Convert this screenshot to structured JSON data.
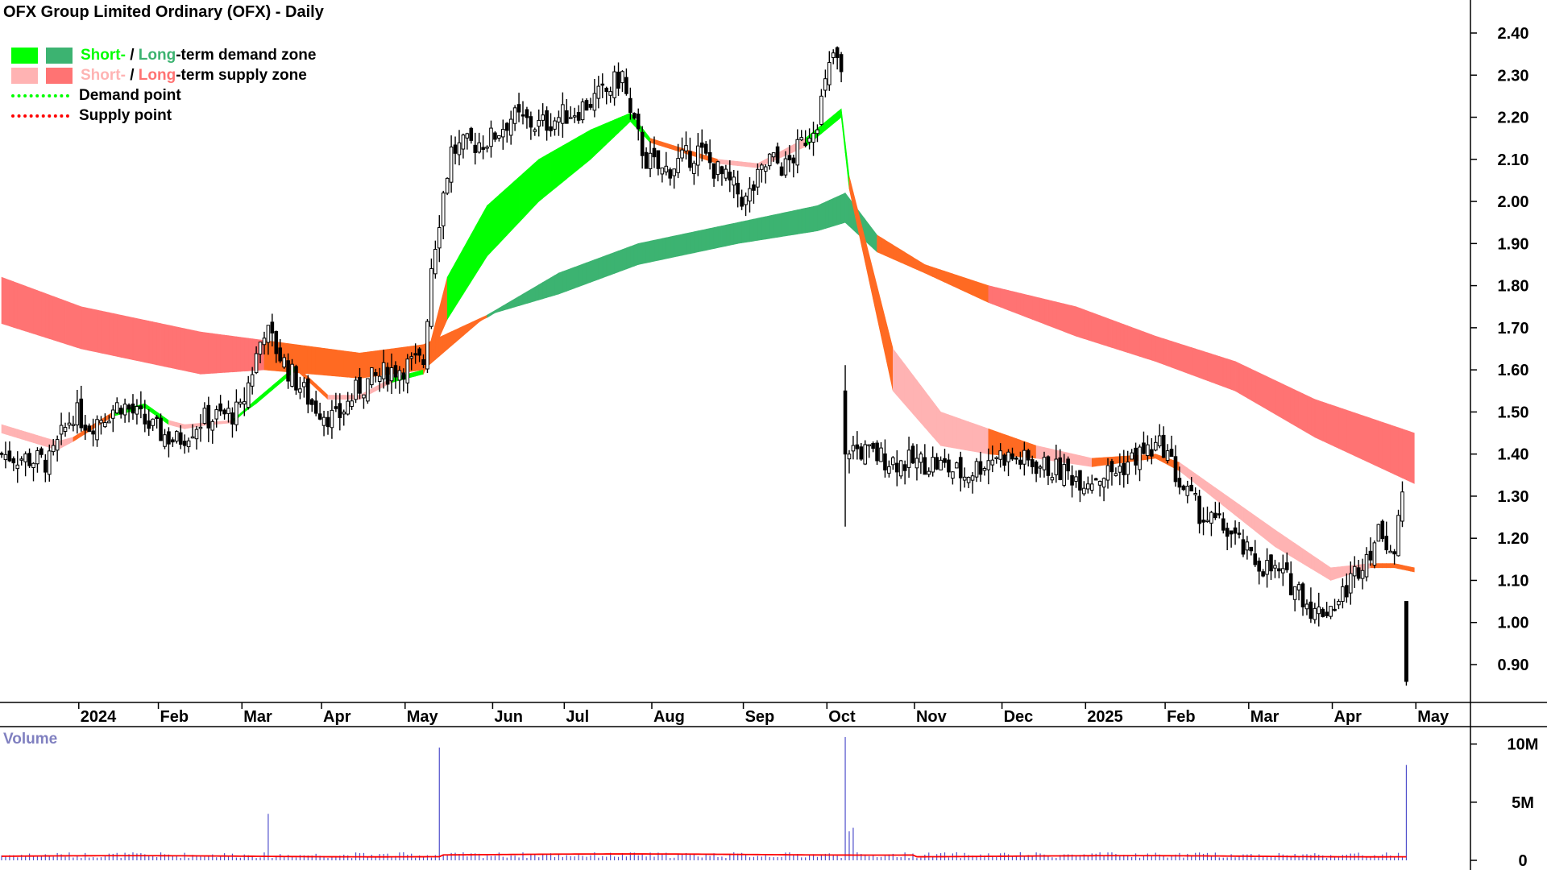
{
  "title": "OFX Group Limited Ordinary (OFX) - Daily",
  "legend": {
    "demand_short": "Short-",
    "demand_sep": " / ",
    "demand_long": "Long",
    "demand_rest": "-term demand zone",
    "supply_short": "Short-",
    "supply_sep": " / ",
    "supply_long": "Long",
    "supply_rest": "-term supply zone",
    "demand_point": "Demand point",
    "supply_point": "Supply point"
  },
  "colors": {
    "demand_short": "#00ff00",
    "demand_long": "#3cb371",
    "supply_short": "#ffb3b3",
    "supply_long": "#ff7373",
    "transition": "#ff6a22",
    "demand_point": "#00ff00",
    "supply_point": "#ff0000",
    "volume_bar": "#5050cc",
    "volume_avg": "#ff0000",
    "volume_label": "#8080c0"
  },
  "volume_label": "Volume",
  "chart_data": {
    "type": "candlestick",
    "x_labels": [
      "2024",
      "Feb",
      "Mar",
      "Apr",
      "May",
      "Jun",
      "Jul",
      "Aug",
      "Sep",
      "Oct",
      "Nov",
      "Dec",
      "2025",
      "Feb",
      "Mar",
      "Apr",
      "May"
    ],
    "y_ticks": [
      "2.40",
      "2.30",
      "2.20",
      "2.10",
      "2.00",
      "1.90",
      "1.80",
      "1.70",
      "1.60",
      "1.50",
      "1.40",
      "1.30",
      "1.20",
      "1.10",
      "1.00",
      "0.90"
    ],
    "ylim": [
      0.82,
      2.48
    ],
    "volume_ticks": [
      "10M",
      "5M",
      "0"
    ],
    "volume_max": 11500000,
    "price_path": [
      [
        0,
        1.4
      ],
      [
        12,
        1.38
      ],
      [
        18,
        1.5
      ],
      [
        22,
        1.47
      ],
      [
        30,
        1.52
      ],
      [
        38,
        1.46
      ],
      [
        44,
        1.43
      ],
      [
        50,
        1.48
      ],
      [
        60,
        1.5
      ],
      [
        66,
        1.7
      ],
      [
        72,
        1.6
      ],
      [
        78,
        1.52
      ],
      [
        84,
        1.48
      ],
      [
        90,
        1.56
      ],
      [
        98,
        1.6
      ],
      [
        106,
        1.62
      ],
      [
        108,
        1.85
      ],
      [
        111,
        2.02
      ],
      [
        113,
        2.12
      ],
      [
        123,
        2.15
      ],
      [
        128,
        2.2
      ],
      [
        135,
        2.18
      ],
      [
        145,
        2.22
      ],
      [
        152,
        2.26
      ],
      [
        156,
        2.3
      ],
      [
        158,
        2.2
      ],
      [
        162,
        2.1
      ],
      [
        166,
        2.07
      ],
      [
        175,
        2.12
      ],
      [
        182,
        2.05
      ],
      [
        187,
        2.0
      ],
      [
        193,
        2.1
      ],
      [
        197,
        2.08
      ],
      [
        200,
        2.12
      ],
      [
        205,
        2.2
      ],
      [
        209,
        2.35
      ],
      [
        211,
        2.3
      ],
      [
        212,
        1.42
      ],
      [
        218,
        1.4
      ],
      [
        226,
        1.38
      ],
      [
        234,
        1.38
      ],
      [
        242,
        1.35
      ],
      [
        250,
        1.4
      ],
      [
        258,
        1.38
      ],
      [
        266,
        1.36
      ],
      [
        272,
        1.34
      ],
      [
        280,
        1.36
      ],
      [
        286,
        1.4
      ],
      [
        292,
        1.42
      ],
      [
        296,
        1.33
      ],
      [
        302,
        1.25
      ],
      [
        308,
        1.22
      ],
      [
        314,
        1.15
      ],
      [
        320,
        1.12
      ],
      [
        326,
        1.08
      ],
      [
        330,
        1.02
      ],
      [
        336,
        1.05
      ],
      [
        342,
        1.15
      ],
      [
        347,
        1.22
      ],
      [
        350,
        1.16
      ],
      [
        352,
        1.3
      ]
    ],
    "last_bar": {
      "open": 1.05,
      "low": 0.85,
      "close": 0.86
    },
    "short_term_zone": [
      [
        0,
        1.47,
        1.45,
        "s"
      ],
      [
        14,
        1.43,
        1.41,
        "s"
      ],
      [
        18,
        1.44,
        1.43,
        "t"
      ],
      [
        28,
        1.5,
        1.49,
        "d"
      ],
      [
        36,
        1.52,
        1.51,
        "d"
      ],
      [
        42,
        1.48,
        1.47,
        "s"
      ],
      [
        46,
        1.47,
        1.46,
        "s"
      ],
      [
        58,
        1.48,
        1.48,
        "d"
      ],
      [
        64,
        1.53,
        1.52,
        "d"
      ],
      [
        74,
        1.61,
        1.6,
        "t"
      ],
      [
        82,
        1.54,
        1.53,
        "s"
      ],
      [
        90,
        1.54,
        1.53,
        "s"
      ],
      [
        98,
        1.58,
        1.57,
        "d"
      ],
      [
        106,
        1.6,
        1.59,
        "t"
      ],
      [
        112,
        1.82,
        1.72,
        "d"
      ],
      [
        122,
        1.99,
        1.87,
        "d"
      ],
      [
        135,
        2.1,
        2.0,
        "d"
      ],
      [
        148,
        2.17,
        2.1,
        "d"
      ],
      [
        158,
        2.21,
        2.19,
        "d"
      ],
      [
        163,
        2.15,
        2.14,
        "t"
      ],
      [
        180,
        2.1,
        2.09,
        "s"
      ],
      [
        190,
        2.09,
        2.08,
        "s"
      ],
      [
        202,
        2.15,
        2.13,
        "d"
      ],
      [
        211,
        2.22,
        2.2,
        "d"
      ],
      [
        213,
        2.06,
        2.03,
        "t"
      ],
      [
        224,
        1.65,
        1.55,
        "s"
      ],
      [
        236,
        1.5,
        1.42,
        "s"
      ],
      [
        248,
        1.46,
        1.4,
        "t"
      ],
      [
        260,
        1.42,
        1.39,
        "s"
      ],
      [
        274,
        1.39,
        1.37,
        "t"
      ],
      [
        290,
        1.4,
        1.39,
        "t"
      ],
      [
        296,
        1.38,
        1.36,
        "s"
      ],
      [
        308,
        1.3,
        1.27,
        "s"
      ],
      [
        320,
        1.22,
        1.18,
        "s"
      ],
      [
        334,
        1.13,
        1.1,
        "s"
      ],
      [
        344,
        1.14,
        1.13,
        "t"
      ],
      [
        350,
        1.14,
        1.13,
        "t"
      ],
      [
        355,
        1.13,
        1.12,
        "d"
      ]
    ],
    "long_term_zone": [
      [
        0,
        1.82,
        1.71,
        "s"
      ],
      [
        20,
        1.75,
        1.65,
        "s"
      ],
      [
        50,
        1.69,
        1.59,
        "s"
      ],
      [
        66,
        1.67,
        1.6,
        "t"
      ],
      [
        90,
        1.64,
        1.58,
        "t"
      ],
      [
        106,
        1.66,
        1.6,
        "t"
      ],
      [
        122,
        1.73,
        1.73,
        "d"
      ],
      [
        140,
        1.83,
        1.78,
        "d"
      ],
      [
        160,
        1.9,
        1.85,
        "d"
      ],
      [
        185,
        1.95,
        1.9,
        "d"
      ],
      [
        205,
        1.99,
        1.93,
        "d"
      ],
      [
        212,
        2.02,
        1.95,
        "d"
      ],
      [
        220,
        1.92,
        1.88,
        "t"
      ],
      [
        232,
        1.85,
        1.83,
        "t"
      ],
      [
        248,
        1.8,
        1.76,
        "s"
      ],
      [
        270,
        1.75,
        1.68,
        "s"
      ],
      [
        290,
        1.68,
        1.62,
        "s"
      ],
      [
        310,
        1.62,
        1.55,
        "s"
      ],
      [
        330,
        1.53,
        1.44,
        "s"
      ],
      [
        355,
        1.45,
        1.33,
        "s"
      ]
    ]
  }
}
